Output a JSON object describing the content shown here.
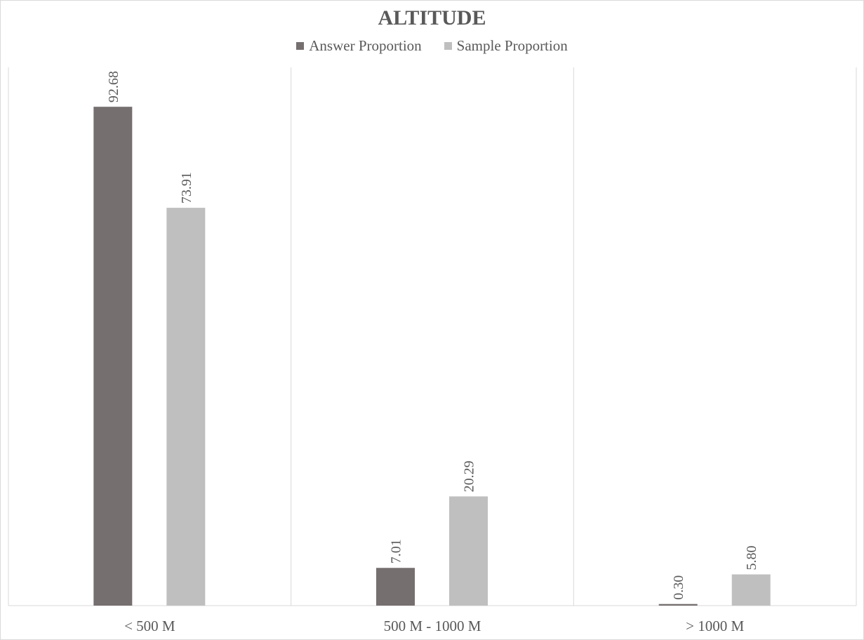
{
  "chart_data": {
    "type": "bar",
    "title": "ALTITUDE",
    "categories": [
      "< 500 M",
      "500 M - 1000 M",
      "> 1000 M"
    ],
    "series": [
      {
        "name": "Answer Proportion",
        "color": "#766f6f",
        "values": [
          92.68,
          7.01,
          0.3
        ],
        "labels": [
          "92.68",
          "7.01",
          "0.30"
        ]
      },
      {
        "name": "Sample Proportion",
        "color": "#bfbfbf",
        "values": [
          73.91,
          20.29,
          5.8
        ],
        "labels": [
          "73.91",
          "20.29",
          "5.80"
        ]
      }
    ],
    "xlabel": "",
    "ylabel": "",
    "ylim": [
      0,
      100
    ],
    "legend_position": "top",
    "grid": "vertical category separators"
  }
}
